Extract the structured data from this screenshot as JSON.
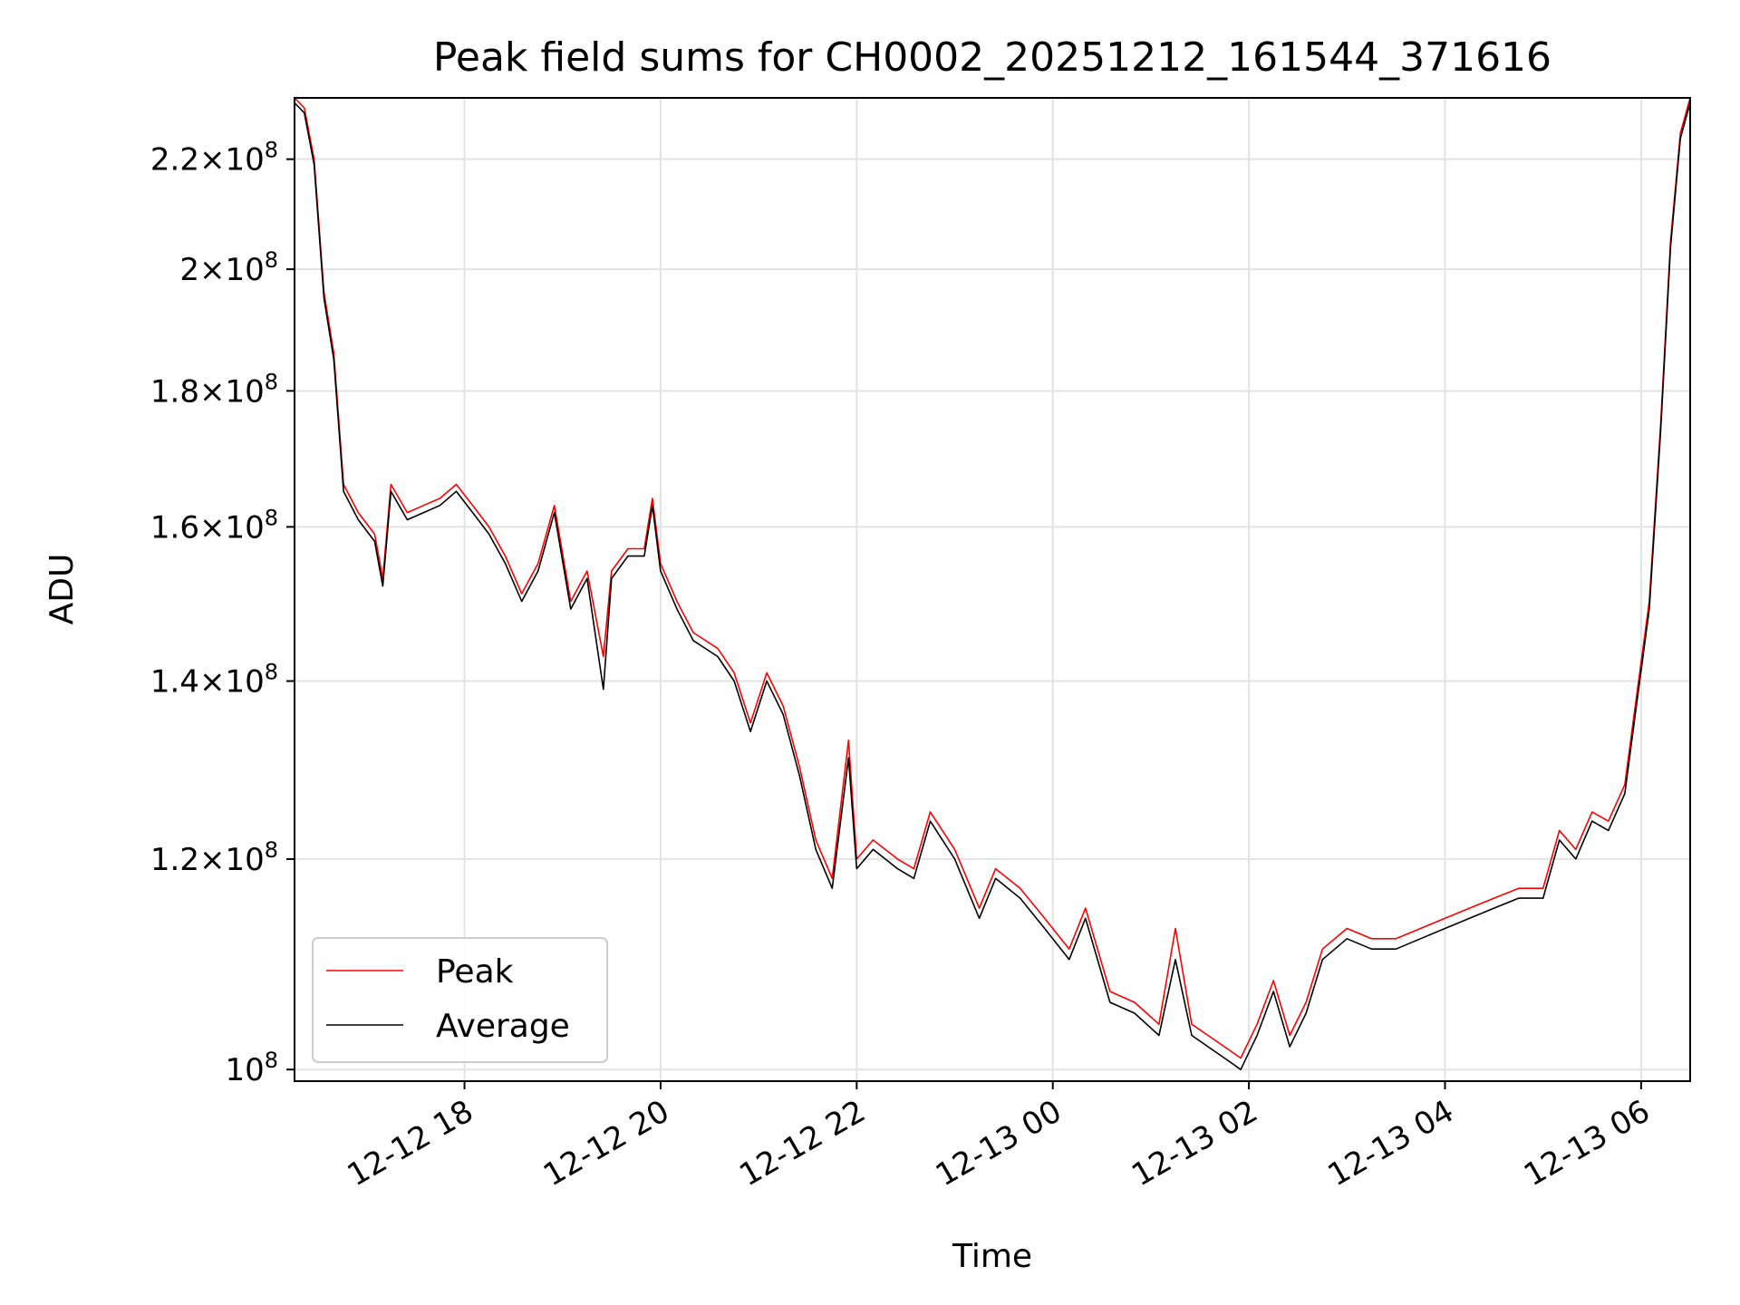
{
  "chart_data": {
    "type": "line",
    "title": "Peak field sums for CH0002_20251212_161544_371616",
    "xlabel": "Time",
    "ylabel": "ADU",
    "y_scale": "log",
    "grid": true,
    "legend_position": "lower-left",
    "xlim": [
      "2025-12-12 16:16",
      "2025-12-13 06:30"
    ],
    "ylim": [
      99000000,
      232000000
    ],
    "x_ticks": [
      {
        "value": "2025-12-12 18:00",
        "label": "12-12 18"
      },
      {
        "value": "2025-12-12 20:00",
        "label": "12-12 20"
      },
      {
        "value": "2025-12-12 22:00",
        "label": "12-12 22"
      },
      {
        "value": "2025-12-13 00:00",
        "label": "12-13 00"
      },
      {
        "value": "2025-12-13 02:00",
        "label": "12-13 02"
      },
      {
        "value": "2025-12-13 04:00",
        "label": "12-13 04"
      },
      {
        "value": "2025-12-13 06:00",
        "label": "12-13 06"
      }
    ],
    "y_ticks": [
      {
        "value": 100000000,
        "mantissa": "",
        "exponent": "8"
      },
      {
        "value": 120000000,
        "mantissa": "1.2",
        "exponent": "8"
      },
      {
        "value": 140000000,
        "mantissa": "1.4",
        "exponent": "8"
      },
      {
        "value": 160000000,
        "mantissa": "1.6",
        "exponent": "8"
      },
      {
        "value": 180000000,
        "mantissa": "1.8",
        "exponent": "8"
      },
      {
        "value": 200000000,
        "mantissa": "2",
        "exponent": "8"
      },
      {
        "value": 220000000,
        "mantissa": "2.2",
        "exponent": "8"
      }
    ],
    "series": [
      {
        "name": "Peak",
        "color": "#ff0000",
        "points": [
          [
            "2025-12-12 16:16",
            232000000
          ],
          [
            "2025-12-12 16:22",
            230000000
          ],
          [
            "2025-12-12 16:28",
            220000000
          ],
          [
            "2025-12-12 16:34",
            196000000
          ],
          [
            "2025-12-12 16:40",
            186000000
          ],
          [
            "2025-12-12 16:46",
            166000000
          ],
          [
            "2025-12-12 16:55",
            162000000
          ],
          [
            "2025-12-12 17:05",
            159000000
          ],
          [
            "2025-12-12 17:10",
            153000000
          ],
          [
            "2025-12-12 17:15",
            166000000
          ],
          [
            "2025-12-12 17:25",
            162000000
          ],
          [
            "2025-12-12 17:35",
            163000000
          ],
          [
            "2025-12-12 17:45",
            164000000
          ],
          [
            "2025-12-12 17:55",
            166000000
          ],
          [
            "2025-12-12 18:05",
            163000000
          ],
          [
            "2025-12-12 18:15",
            160000000
          ],
          [
            "2025-12-12 18:25",
            156000000
          ],
          [
            "2025-12-12 18:35",
            151000000
          ],
          [
            "2025-12-12 18:45",
            155000000
          ],
          [
            "2025-12-12 18:55",
            163000000
          ],
          [
            "2025-12-12 19:05",
            150000000
          ],
          [
            "2025-12-12 19:15",
            154000000
          ],
          [
            "2025-12-12 19:25",
            143000000
          ],
          [
            "2025-12-12 19:30",
            154000000
          ],
          [
            "2025-12-12 19:40",
            157000000
          ],
          [
            "2025-12-12 19:50",
            157000000
          ],
          [
            "2025-12-12 19:55",
            164000000
          ],
          [
            "2025-12-12 20:00",
            155000000
          ],
          [
            "2025-12-12 20:10",
            150000000
          ],
          [
            "2025-12-12 20:20",
            146000000
          ],
          [
            "2025-12-12 20:35",
            144000000
          ],
          [
            "2025-12-12 20:45",
            141000000
          ],
          [
            "2025-12-12 20:55",
            135000000
          ],
          [
            "2025-12-12 21:05",
            141000000
          ],
          [
            "2025-12-12 21:15",
            137000000
          ],
          [
            "2025-12-12 21:25",
            130000000
          ],
          [
            "2025-12-12 21:35",
            122000000
          ],
          [
            "2025-12-12 21:45",
            118000000
          ],
          [
            "2025-12-12 21:55",
            133000000
          ],
          [
            "2025-12-12 22:00",
            120000000
          ],
          [
            "2025-12-12 22:10",
            122000000
          ],
          [
            "2025-12-12 22:25",
            120000000
          ],
          [
            "2025-12-12 22:35",
            119000000
          ],
          [
            "2025-12-12 22:45",
            125000000
          ],
          [
            "2025-12-12 23:00",
            121000000
          ],
          [
            "2025-12-12 23:15",
            115000000
          ],
          [
            "2025-12-12 23:25",
            119000000
          ],
          [
            "2025-12-12 23:40",
            117000000
          ],
          [
            "2025-12-12 23:55",
            114000000
          ],
          [
            "2025-12-13 00:10",
            111000000
          ],
          [
            "2025-12-13 00:20",
            115000000
          ],
          [
            "2025-12-13 00:35",
            107000000
          ],
          [
            "2025-12-13 00:50",
            106000000
          ],
          [
            "2025-12-13 01:05",
            104000000
          ],
          [
            "2025-12-13 01:15",
            113000000
          ],
          [
            "2025-12-13 01:25",
            104000000
          ],
          [
            "2025-12-13 01:35",
            103000000
          ],
          [
            "2025-12-13 01:45",
            102000000
          ],
          [
            "2025-12-13 01:55",
            101000000
          ],
          [
            "2025-12-13 02:05",
            104000000
          ],
          [
            "2025-12-13 02:15",
            108000000
          ],
          [
            "2025-12-13 02:25",
            103000000
          ],
          [
            "2025-12-13 02:35",
            106000000
          ],
          [
            "2025-12-13 02:45",
            111000000
          ],
          [
            "2025-12-13 03:00",
            113000000
          ],
          [
            "2025-12-13 03:15",
            112000000
          ],
          [
            "2025-12-13 03:30",
            112000000
          ],
          [
            "2025-12-13 03:45",
            113000000
          ],
          [
            "2025-12-13 04:00",
            114000000
          ],
          [
            "2025-12-13 04:15",
            115000000
          ],
          [
            "2025-12-13 04:30",
            116000000
          ],
          [
            "2025-12-13 04:45",
            117000000
          ],
          [
            "2025-12-13 05:00",
            117000000
          ],
          [
            "2025-12-13 05:10",
            123000000
          ],
          [
            "2025-12-13 05:20",
            121000000
          ],
          [
            "2025-12-13 05:30",
            125000000
          ],
          [
            "2025-12-13 05:40",
            124000000
          ],
          [
            "2025-12-13 05:50",
            128000000
          ],
          [
            "2025-12-13 05:55",
            135000000
          ],
          [
            "2025-12-13 06:05",
            150000000
          ],
          [
            "2025-12-13 06:12",
            175000000
          ],
          [
            "2025-12-13 06:18",
            205000000
          ],
          [
            "2025-12-13 06:24",
            225000000
          ],
          [
            "2025-12-13 06:30",
            232000000
          ]
        ]
      },
      {
        "name": "Average",
        "color": "#000000",
        "points": [
          [
            "2025-12-12 16:16",
            231000000
          ],
          [
            "2025-12-12 16:22",
            229000000
          ],
          [
            "2025-12-12 16:28",
            219000000
          ],
          [
            "2025-12-12 16:34",
            195000000
          ],
          [
            "2025-12-12 16:40",
            185000000
          ],
          [
            "2025-12-12 16:46",
            165000000
          ],
          [
            "2025-12-12 16:55",
            161000000
          ],
          [
            "2025-12-12 17:05",
            158000000
          ],
          [
            "2025-12-12 17:10",
            152000000
          ],
          [
            "2025-12-12 17:15",
            165000000
          ],
          [
            "2025-12-12 17:25",
            161000000
          ],
          [
            "2025-12-12 17:35",
            162000000
          ],
          [
            "2025-12-12 17:45",
            163000000
          ],
          [
            "2025-12-12 17:55",
            165000000
          ],
          [
            "2025-12-12 18:05",
            162000000
          ],
          [
            "2025-12-12 18:15",
            159000000
          ],
          [
            "2025-12-12 18:25",
            155000000
          ],
          [
            "2025-12-12 18:35",
            150000000
          ],
          [
            "2025-12-12 18:45",
            154000000
          ],
          [
            "2025-12-12 18:55",
            162000000
          ],
          [
            "2025-12-12 19:05",
            149000000
          ],
          [
            "2025-12-12 19:15",
            153000000
          ],
          [
            "2025-12-12 19:25",
            139000000
          ],
          [
            "2025-12-12 19:30",
            153000000
          ],
          [
            "2025-12-12 19:40",
            156000000
          ],
          [
            "2025-12-12 19:50",
            156000000
          ],
          [
            "2025-12-12 19:55",
            163000000
          ],
          [
            "2025-12-12 20:00",
            154000000
          ],
          [
            "2025-12-12 20:10",
            149000000
          ],
          [
            "2025-12-12 20:20",
            145000000
          ],
          [
            "2025-12-12 20:35",
            143000000
          ],
          [
            "2025-12-12 20:45",
            140000000
          ],
          [
            "2025-12-12 20:55",
            134000000
          ],
          [
            "2025-12-12 21:05",
            140000000
          ],
          [
            "2025-12-12 21:15",
            136000000
          ],
          [
            "2025-12-12 21:25",
            129000000
          ],
          [
            "2025-12-12 21:35",
            121000000
          ],
          [
            "2025-12-12 21:45",
            117000000
          ],
          [
            "2025-12-12 21:55",
            131000000
          ],
          [
            "2025-12-12 22:00",
            119000000
          ],
          [
            "2025-12-12 22:10",
            121000000
          ],
          [
            "2025-12-12 22:25",
            119000000
          ],
          [
            "2025-12-12 22:35",
            118000000
          ],
          [
            "2025-12-12 22:45",
            124000000
          ],
          [
            "2025-12-12 23:00",
            120000000
          ],
          [
            "2025-12-12 23:15",
            114000000
          ],
          [
            "2025-12-12 23:25",
            118000000
          ],
          [
            "2025-12-12 23:40",
            116000000
          ],
          [
            "2025-12-12 23:55",
            113000000
          ],
          [
            "2025-12-13 00:10",
            110000000
          ],
          [
            "2025-12-13 00:20",
            114000000
          ],
          [
            "2025-12-13 00:35",
            106000000
          ],
          [
            "2025-12-13 00:50",
            105000000
          ],
          [
            "2025-12-13 01:05",
            103000000
          ],
          [
            "2025-12-13 01:15",
            110000000
          ],
          [
            "2025-12-13 01:25",
            103000000
          ],
          [
            "2025-12-13 01:35",
            102000000
          ],
          [
            "2025-12-13 01:45",
            101000000
          ],
          [
            "2025-12-13 01:55",
            100000000
          ],
          [
            "2025-12-13 02:05",
            103000000
          ],
          [
            "2025-12-13 02:15",
            107000000
          ],
          [
            "2025-12-13 02:25",
            102000000
          ],
          [
            "2025-12-13 02:35",
            105000000
          ],
          [
            "2025-12-13 02:45",
            110000000
          ],
          [
            "2025-12-13 03:00",
            112000000
          ],
          [
            "2025-12-13 03:15",
            111000000
          ],
          [
            "2025-12-13 03:30",
            111000000
          ],
          [
            "2025-12-13 03:45",
            112000000
          ],
          [
            "2025-12-13 04:00",
            113000000
          ],
          [
            "2025-12-13 04:15",
            114000000
          ],
          [
            "2025-12-13 04:30",
            115000000
          ],
          [
            "2025-12-13 04:45",
            116000000
          ],
          [
            "2025-12-13 05:00",
            116000000
          ],
          [
            "2025-12-13 05:10",
            122000000
          ],
          [
            "2025-12-13 05:20",
            120000000
          ],
          [
            "2025-12-13 05:30",
            124000000
          ],
          [
            "2025-12-13 05:40",
            123000000
          ],
          [
            "2025-12-13 05:50",
            127000000
          ],
          [
            "2025-12-13 05:55",
            134000000
          ],
          [
            "2025-12-13 06:05",
            149000000
          ],
          [
            "2025-12-13 06:12",
            174000000
          ],
          [
            "2025-12-13 06:18",
            204000000
          ],
          [
            "2025-12-13 06:24",
            224000000
          ],
          [
            "2025-12-13 06:30",
            231000000
          ]
        ]
      }
    ]
  }
}
